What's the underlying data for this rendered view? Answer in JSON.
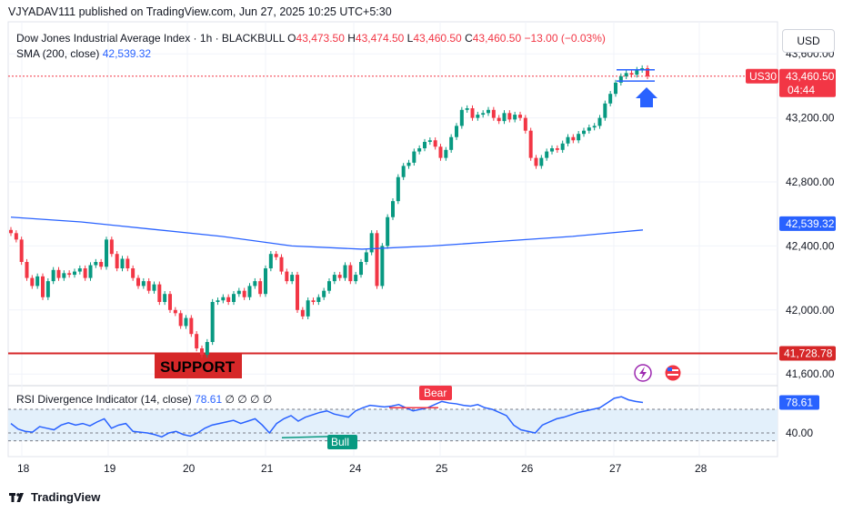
{
  "publisher_line": "VJYADAV111 published on TradingView.com, Jun 27, 2025 10:25 UTC+5:30",
  "header": {
    "instrument": "Dow Jones Industrial Average Index · 1h · BLACKBULL",
    "o_label": "O",
    "o_value": "43,473.50",
    "h_label": "H",
    "h_value": "43,474.50",
    "l_label": "L",
    "l_value": "43,460.50",
    "c_label": "C",
    "c_value": "43,460.50",
    "change": "−13.00 (−0.03%)",
    "sma_label": "SMA (200, close)",
    "sma_value": "42,539.32"
  },
  "currency_button": "USD",
  "symbol_tag": "US30",
  "last_price_label": "43,460.50",
  "countdown": "04:44",
  "sma_price_label": "42,539.32",
  "support_price_label": "41,728.78",
  "support_text": "SUPPORT",
  "rsi": {
    "header": "RSI Divergence Indicator (14, close)",
    "value": "78.61",
    "extras": "∅ ∅ ∅ ∅",
    "value_label": "78.61",
    "level_label": "40.00",
    "bear_label": "Bear",
    "bull_label": "Bull"
  },
  "footer_brand": "TradingView",
  "colors": {
    "up": "#089981",
    "down": "#f23645",
    "sma": "#2962ff",
    "support": "#d62728",
    "rsi_line": "#2962ff",
    "rsi_band": "#e3f0fb",
    "arrow": "#2962ff"
  },
  "icons": [
    "flash-icon",
    "us-flag-icon",
    "arrow-up-icon",
    "tradingview-logo-icon"
  ],
  "chart_data": {
    "type": "candlestick",
    "x_ticks": [
      "18",
      "19",
      "20",
      "21",
      "24",
      "25",
      "26",
      "27",
      "28"
    ],
    "y_ticks": [
      "43,600.00",
      "43,200.00",
      "42,800.00",
      "42,400.00",
      "42,000.00",
      "41,600.00"
    ],
    "y_tick_values": [
      43600,
      43200,
      42800,
      42400,
      42000,
      41600
    ],
    "ylim": [
      41550,
      43800
    ],
    "rsi_ylim": [
      10,
      100
    ],
    "support_level": 41728.78,
    "last_price": 43460.5,
    "sma_level": 42539.32,
    "candles_close": [
      42480,
      42440,
      42300,
      42200,
      42150,
      42210,
      42080,
      42180,
      42250,
      42200,
      42230,
      42220,
      42240,
      42260,
      42200,
      42280,
      42300,
      42270,
      42440,
      42350,
      42260,
      42320,
      42260,
      42200,
      42150,
      42180,
      42120,
      42160,
      42050,
      42100,
      42000,
      41980,
      41900,
      41950,
      41850,
      41760,
      41720,
      41800,
      42050,
      42060,
      42080,
      42050,
      42100,
      42120,
      42080,
      42150,
      42180,
      42100,
      42260,
      42350,
      42330,
      42240,
      42180,
      42220,
      42000,
      41960,
      42060,
      42050,
      42080,
      42120,
      42180,
      42220,
      42200,
      42280,
      42180,
      42220,
      42300,
      42360,
      42480,
      42150,
      42400,
      42580,
      42680,
      42830,
      42900,
      42920,
      42990,
      43010,
      43050,
      43060,
      43020,
      42950,
      43000,
      43080,
      43150,
      43250,
      43260,
      43200,
      43220,
      43230,
      43250,
      43200,
      43180,
      43230,
      43190,
      43220,
      43200,
      43120,
      42950,
      42900,
      42950,
      42990,
      43010,
      43000,
      43040,
      43080,
      43060,
      43100,
      43120,
      43140,
      43150,
      43200,
      43290,
      43350,
      43420,
      43460,
      43480,
      43470,
      43500,
      43510,
      43460
    ],
    "sma_points": [
      [
        0,
        42580
      ],
      [
        20,
        42550
      ],
      [
        40,
        42505
      ],
      [
        60,
        42460
      ],
      [
        80,
        42400
      ],
      [
        100,
        42380
      ],
      [
        120,
        42400
      ],
      [
        140,
        42430
      ],
      [
        160,
        42460
      ],
      [
        180,
        42500
      ]
    ],
    "rsi_values": [
      52,
      45,
      42,
      41,
      48,
      46,
      44,
      50,
      53,
      50,
      52,
      49,
      54,
      58,
      46,
      50,
      52,
      42,
      41,
      40,
      38,
      35,
      40,
      42,
      38,
      36,
      40,
      46,
      50,
      52,
      54,
      56,
      52,
      55,
      58,
      50,
      40,
      52,
      58,
      62,
      55,
      60,
      63,
      66,
      68,
      64,
      62,
      60,
      68,
      72,
      75,
      74,
      73,
      74,
      76,
      72,
      68,
      70,
      72,
      76,
      80,
      78,
      77,
      75,
      74,
      76,
      72,
      70,
      66,
      62,
      50,
      44,
      42,
      40,
      50,
      54,
      58,
      60,
      63,
      66,
      68,
      70,
      72,
      78,
      84,
      86,
      82,
      80,
      78.61
    ],
    "rsi_level": 40
  }
}
